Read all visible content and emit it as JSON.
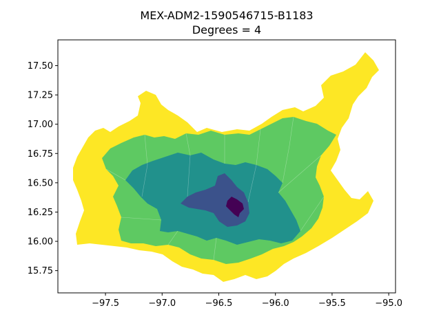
{
  "chart_data": {
    "type": "choropleth",
    "title": "MEX-ADM2-1590546715-B1183",
    "subtitle": "Degrees = 4",
    "xlim": [
      -97.92,
      -94.94
    ],
    "ylim": [
      15.56,
      17.72
    ],
    "xticks": [
      "−97.5",
      "−97.0",
      "−96.5",
      "−96.0",
      "−95.5",
      "−95.0"
    ],
    "xtick_values": [
      -97.5,
      -97.0,
      -96.5,
      -96.0,
      -95.5,
      -95.0
    ],
    "yticks": [
      "17.50",
      "17.25",
      "17.00",
      "16.75",
      "16.50",
      "16.25",
      "16.00",
      "15.75"
    ],
    "ytick_values": [
      17.5,
      17.25,
      17.0,
      16.75,
      16.5,
      16.25,
      16.0,
      15.75
    ],
    "colormap": "viridis",
    "class_colors": {
      "0": "#440154",
      "1": "#3b528b",
      "2": "#21918c",
      "3": "#5ec962",
      "4": "#fde725"
    },
    "grid": false,
    "legend": "none"
  }
}
